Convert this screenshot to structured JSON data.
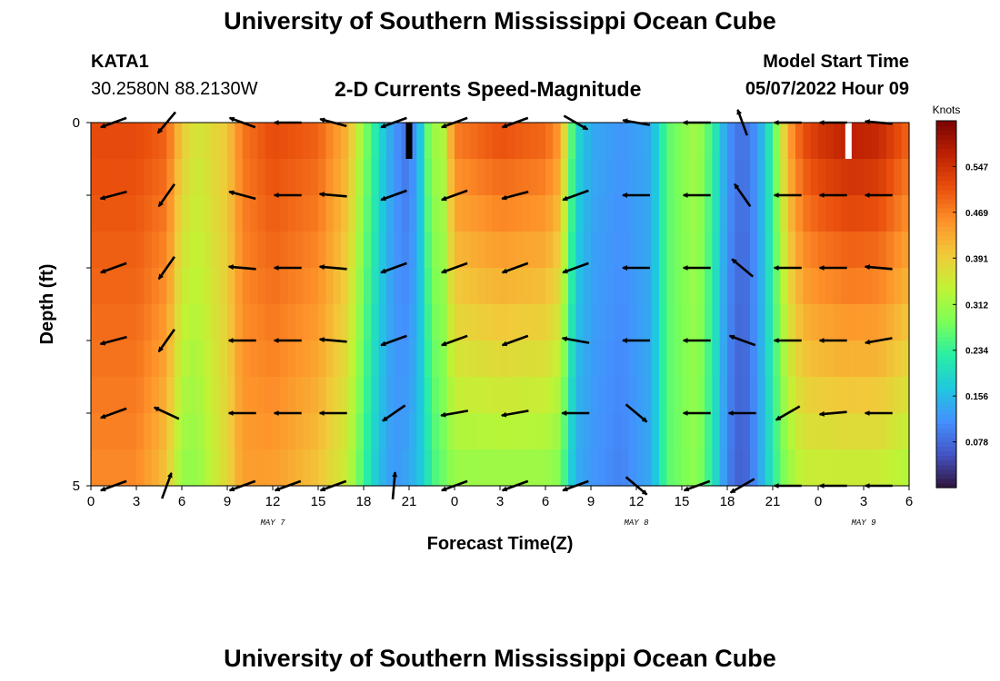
{
  "header": {
    "title": "University of Southern Mississippi Ocean Cube",
    "station": "KATA1",
    "coords": "30.2580N  88.2130W",
    "subtitle": "2-D Currents Speed-Magnitude",
    "model_label": "Model Start Time",
    "model_time": "05/07/2022 Hour 09",
    "bottom_title": "University of Southern Mississippi Ocean Cube"
  },
  "chart_data": {
    "type": "heatmap",
    "title": "2-D Currents Speed-Magnitude",
    "xlabel": "Forecast Time(Z)",
    "ylabel": "Depth (ft)",
    "x_ticks": [
      "0",
      "3",
      "6",
      "9",
      "12",
      "15",
      "18",
      "21",
      "0",
      "3",
      "6",
      "9",
      "12",
      "15",
      "18",
      "21",
      "0",
      "3",
      "6"
    ],
    "x_hours": [
      0,
      3,
      6,
      9,
      12,
      15,
      18,
      21,
      24,
      27,
      30,
      33,
      36,
      39,
      42,
      45,
      48,
      51,
      54
    ],
    "x_range_hours": [
      0,
      54
    ],
    "date_labels": [
      {
        "label": "MAY 7",
        "hour": 12
      },
      {
        "label": "MAY 8",
        "hour": 36
      },
      {
        "label": "MAY 9",
        "hour": 51
      }
    ],
    "y_ticks": [
      "0",
      "5"
    ],
    "y_range_ft": [
      0,
      5
    ],
    "colorbar": {
      "label": "Knots",
      "ticks": [
        "0.547",
        "0.469",
        "0.391",
        "0.312",
        "0.234",
        "0.156",
        "0.078"
      ],
      "tick_values": [
        0.547,
        0.469,
        0.391,
        0.312,
        0.234,
        0.156,
        0.078
      ],
      "range": [
        0,
        0.625
      ],
      "colors": [
        "#30123b",
        "#4454c4",
        "#4490fe",
        "#1fc8de",
        "#29efa2",
        "#7dff56",
        "#c1f334",
        "#f1ca3a",
        "#fe922a",
        "#ea4f0d",
        "#be2102",
        "#7a0403"
      ]
    },
    "depth_rows_ft": [
      0.25,
      0.75,
      1.25,
      1.75,
      2.25,
      2.75,
      3.25,
      3.75,
      4.25,
      4.75
    ],
    "speed_profile": {
      "hours": [
        0,
        3,
        5,
        6,
        7,
        9,
        10,
        12,
        15,
        17,
        18,
        19,
        20,
        21,
        22,
        22.5,
        23,
        24,
        27,
        30,
        31,
        31.5,
        32,
        33,
        35,
        37,
        38,
        40,
        41,
        42,
        43,
        44,
        45,
        46,
        47,
        48,
        50,
        52,
        54
      ],
      "surface": [
        0.52,
        0.52,
        0.5,
        0.4,
        0.36,
        0.4,
        0.48,
        0.52,
        0.5,
        0.42,
        0.3,
        0.2,
        0.12,
        0.08,
        0.2,
        0.35,
        0.28,
        0.48,
        0.52,
        0.5,
        0.45,
        0.32,
        0.2,
        0.14,
        0.12,
        0.14,
        0.26,
        0.32,
        0.24,
        0.12,
        0.08,
        0.12,
        0.24,
        0.44,
        0.52,
        0.55,
        0.58,
        0.57,
        0.5
      ],
      "bottom": [
        0.46,
        0.46,
        0.4,
        0.3,
        0.3,
        0.38,
        0.44,
        0.44,
        0.4,
        0.34,
        0.24,
        0.16,
        0.12,
        0.14,
        0.18,
        0.24,
        0.26,
        0.3,
        0.3,
        0.3,
        0.28,
        0.2,
        0.14,
        0.12,
        0.1,
        0.14,
        0.26,
        0.3,
        0.22,
        0.1,
        0.06,
        0.12,
        0.22,
        0.3,
        0.34,
        0.34,
        0.34,
        0.34,
        0.32
      ]
    },
    "vectors": {
      "hours": [
        1.5,
        5,
        10,
        13,
        16,
        20,
        24,
        28,
        32,
        36,
        40,
        43,
        46,
        49,
        52
      ],
      "depth_rows_ft": [
        0,
        1,
        2,
        3,
        4,
        5
      ],
      "directions_deg": [
        [
          200,
          230,
          160,
          180,
          165,
          200,
          200,
          200,
          330,
          170,
          180,
          110,
          180,
          180,
          175
        ],
        [
          195,
          235,
          165,
          180,
          175,
          200,
          200,
          195,
          200,
          180,
          180,
          125,
          180,
          180,
          180
        ],
        [
          200,
          235,
          175,
          180,
          175,
          200,
          200,
          200,
          200,
          180,
          180,
          140,
          180,
          180,
          175
        ],
        [
          195,
          235,
          180,
          180,
          175,
          200,
          200,
          200,
          170,
          180,
          180,
          160,
          180,
          180,
          190
        ],
        [
          200,
          155,
          180,
          180,
          180,
          215,
          190,
          190,
          180,
          320,
          180,
          180,
          210,
          185,
          180
        ],
        [
          200,
          70,
          200,
          200,
          200,
          85,
          200,
          200,
          200,
          320,
          200,
          210,
          180,
          180,
          180
        ]
      ]
    },
    "missing_cells": [
      {
        "hour": 21,
        "depth_row_ft": 0
      },
      {
        "hour": 50,
        "depth_row_ft": 0
      }
    ]
  }
}
